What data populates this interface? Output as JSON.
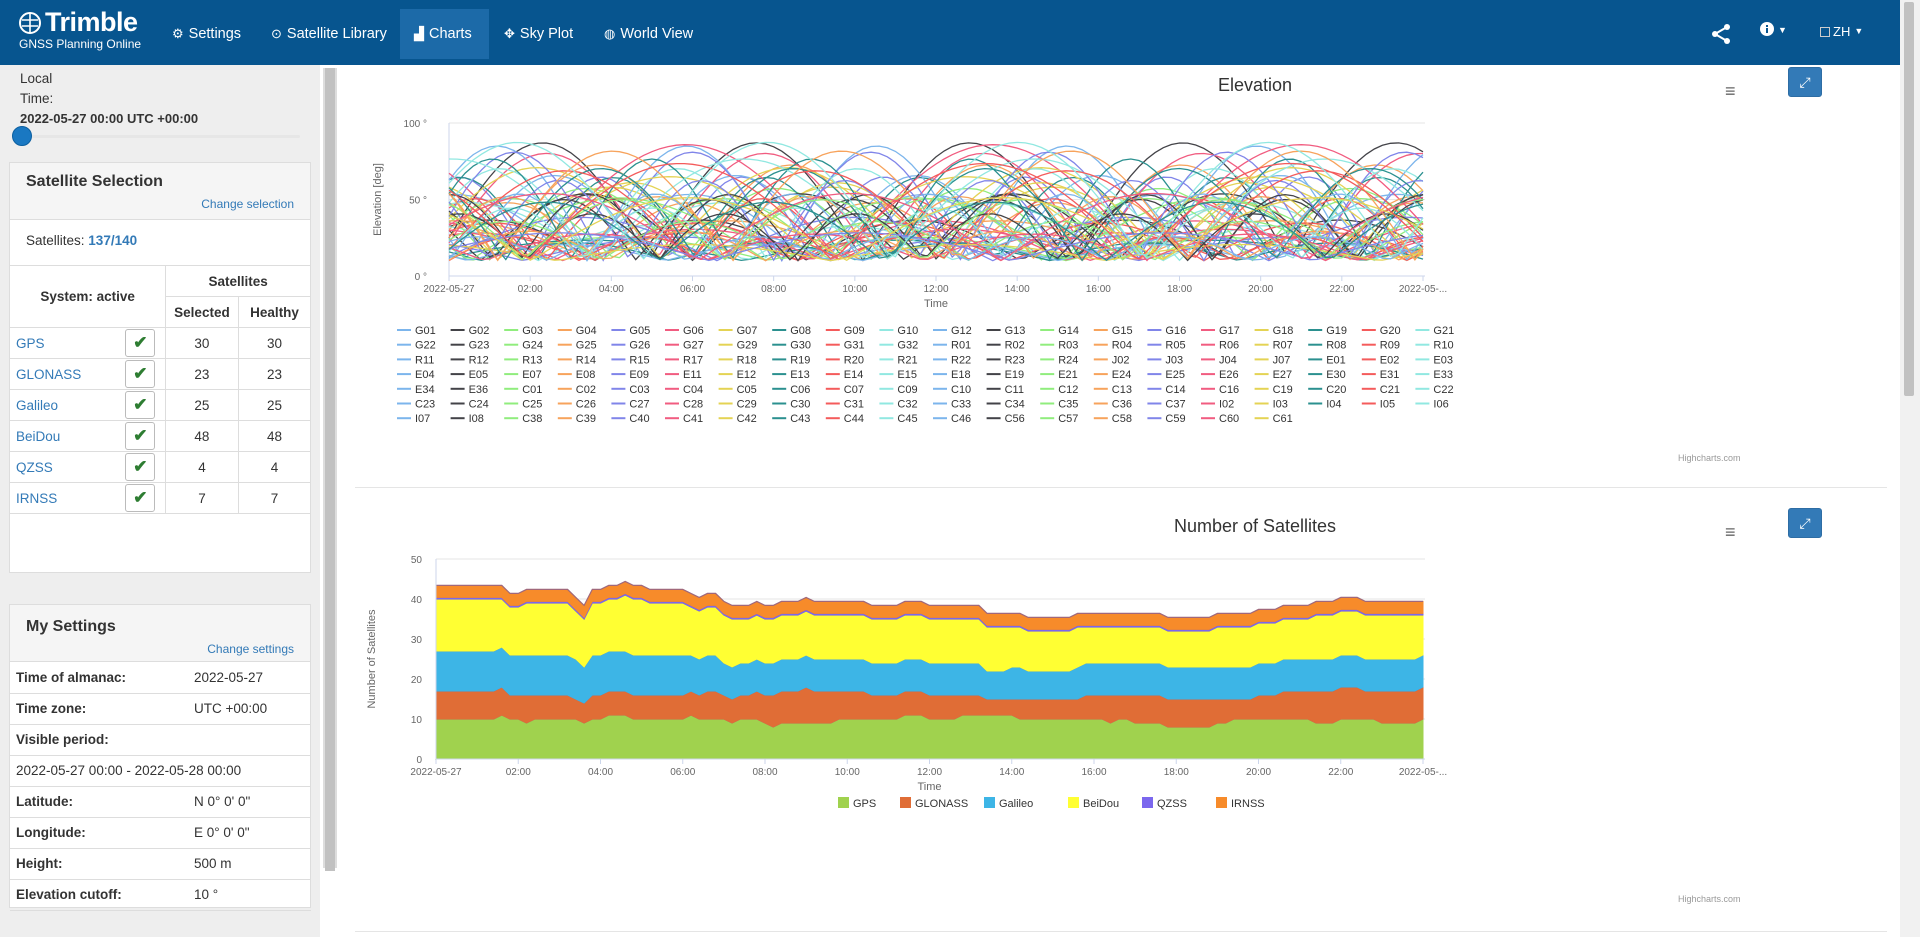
{
  "app": {
    "brand": "Trimble",
    "subtitle": "GNSS Planning Online"
  },
  "nav": [
    {
      "label": "Settings",
      "icon": "gear-icon"
    },
    {
      "label": "Satellite Library",
      "icon": "satellite-icon"
    },
    {
      "label": "Charts",
      "icon": "bar-chart-icon",
      "active": true
    },
    {
      "label": "Sky Plot",
      "icon": "crosshair-icon"
    },
    {
      "label": "World View",
      "icon": "globe-icon"
    }
  ],
  "header": {
    "lang": "ZH"
  },
  "time": {
    "label": "Local Time:",
    "value": "2022-05-27 00:00 UTC +00:00",
    "slider_fraction": 0
  },
  "satellite_selection": {
    "title": "Satellite Selection",
    "change_link": "Change selection",
    "count_label": "Satellites:",
    "count_selected": "137",
    "count_total": "140",
    "col_system": "System: active",
    "col_satellites": "Satellites",
    "col_selected": "Selected",
    "col_healthy": "Healthy",
    "systems": [
      {
        "name": "GPS",
        "selected": "30",
        "healthy": "30"
      },
      {
        "name": "GLONASS",
        "selected": "23",
        "healthy": "23"
      },
      {
        "name": "Galileo",
        "selected": "25",
        "healthy": "25"
      },
      {
        "name": "BeiDou",
        "selected": "48",
        "healthy": "48"
      },
      {
        "name": "QZSS",
        "selected": "4",
        "healthy": "4"
      },
      {
        "name": "IRNSS",
        "selected": "7",
        "healthy": "7"
      }
    ]
  },
  "my_settings": {
    "title": "My Settings",
    "change_link": "Change settings",
    "almanac_label": "Time of almanac:",
    "almanac": "2022-05-27",
    "tz_label": "Time zone:",
    "tz": "UTC +00:00",
    "period_label": "Visible period:",
    "period": "2022-05-27 00:00 - 2022-05-28 00:00",
    "lat_label": "Latitude:",
    "lat": "N 0° 0' 0\"",
    "lon_label": "Longitude:",
    "lon": "E 0° 0' 0\"",
    "height_label": "Height:",
    "height": "500 m",
    "cutoff_label": "Elevation cutoff:",
    "cutoff": "10 °"
  },
  "chart_data": [
    {
      "type": "line",
      "title": "Elevation",
      "xlabel": "Time",
      "ylabel": "Elevation [deg]",
      "ylim": [
        0,
        100
      ],
      "yticks": [
        "0 °",
        "50 °",
        "100 °"
      ],
      "xticks": [
        "2022-05-27",
        "02:00",
        "04:00",
        "06:00",
        "08:00",
        "10:00",
        "12:00",
        "14:00",
        "16:00",
        "18:00",
        "20:00",
        "22:00",
        "2022-05-..."
      ],
      "legend": [
        "G01",
        "G02",
        "G03",
        "G04",
        "G05",
        "G06",
        "G07",
        "G08",
        "G09",
        "G10",
        "G12",
        "G13",
        "G14",
        "G15",
        "G16",
        "G17",
        "G18",
        "G19",
        "G20",
        "G21",
        "G22",
        "G23",
        "G24",
        "G25",
        "G26",
        "G27",
        "G29",
        "G30",
        "G31",
        "G32",
        "R01",
        "R02",
        "R03",
        "R04",
        "R05",
        "R06",
        "R07",
        "R08",
        "R09",
        "R10",
        "R11",
        "R12",
        "R13",
        "R14",
        "R15",
        "R17",
        "R18",
        "R19",
        "R20",
        "R21",
        "R22",
        "R23",
        "R24",
        "J02",
        "J03",
        "J04",
        "J07",
        "E01",
        "E02",
        "E03",
        "E04",
        "E05",
        "E07",
        "E08",
        "E09",
        "E11",
        "E12",
        "E13",
        "E14",
        "E15",
        "E18",
        "E19",
        "E21",
        "E24",
        "E25",
        "E26",
        "E27",
        "E30",
        "E31",
        "E33",
        "E34",
        "E36",
        "C01",
        "C02",
        "C03",
        "C04",
        "C05",
        "C06",
        "C07",
        "C09",
        "C10",
        "C11",
        "C12",
        "C13",
        "C14",
        "C16",
        "C19",
        "C20",
        "C21",
        "C22",
        "C23",
        "C24",
        "C25",
        "C26",
        "C27",
        "C28",
        "C29",
        "C30",
        "C31",
        "C32",
        "C33",
        "C34",
        "C35",
        "C36",
        "C37",
        "I02",
        "I03",
        "I04",
        "I05",
        "I06",
        "I07",
        "I08",
        "C38",
        "C39",
        "C40",
        "C41",
        "C42",
        "C43",
        "C44",
        "C45",
        "C46",
        "C56",
        "C57",
        "C58",
        "C59",
        "C60",
        "C61"
      ],
      "palette": [
        "#7cb5ec",
        "#434348",
        "#90ed7d",
        "#f7a35c",
        "#8085e9",
        "#f15c80",
        "#e4d354",
        "#2b908f",
        "#f45b5b",
        "#91e8e1"
      ],
      "credit": "Highcharts.com"
    },
    {
      "type": "area",
      "stacked": true,
      "title": "Number of Satellites",
      "xlabel": "Time",
      "ylabel": "Number of Satellites",
      "ylim": [
        0,
        50
      ],
      "yticks": [
        "0",
        "10",
        "20",
        "30",
        "40",
        "50"
      ],
      "xticks": [
        "2022-05-27",
        "02:00",
        "04:00",
        "06:00",
        "08:00",
        "10:00",
        "12:00",
        "14:00",
        "16:00",
        "18:00",
        "20:00",
        "22:00",
        "2022-05-..."
      ],
      "series": [
        {
          "name": "GPS",
          "color": "#a0d24e",
          "values": [
            10,
            10,
            10,
            10,
            10,
            10,
            10,
            10,
            11,
            10,
            10,
            9,
            10,
            10,
            10,
            10,
            10,
            10,
            9,
            10,
            10,
            11,
            11,
            11,
            10,
            10,
            10,
            10,
            10,
            10,
            10,
            11,
            10,
            10,
            10,
            10,
            9,
            10,
            10,
            10,
            9,
            8,
            9,
            9,
            9,
            9,
            9,
            9,
            9,
            10,
            10,
            10,
            10,
            10,
            10,
            10,
            10,
            11,
            11,
            11,
            10,
            10,
            10,
            10,
            11,
            11,
            11,
            11,
            11,
            11,
            11,
            10,
            10,
            10,
            10,
            10,
            10,
            10,
            10,
            10,
            10,
            10,
            9,
            10,
            10,
            9,
            9,
            9,
            9,
            8,
            8,
            8,
            8,
            8,
            8,
            9,
            9,
            10,
            10,
            10,
            10,
            10,
            10,
            10,
            10,
            10,
            10,
            9,
            9,
            9,
            10,
            10,
            10,
            10,
            10,
            9,
            9,
            9,
            9,
            9,
            10
          ]
        },
        {
          "name": "GLONASS",
          "color": "#e06d36",
          "values": [
            7,
            7,
            7,
            7,
            7,
            7,
            7,
            7,
            7,
            6,
            6,
            7,
            6,
            6,
            6,
            6,
            6,
            5,
            5,
            6,
            6,
            6,
            6,
            6,
            6,
            6,
            6,
            6,
            6,
            6,
            6,
            6,
            6,
            7,
            7,
            6,
            6,
            6,
            6,
            7,
            7,
            8,
            8,
            8,
            8,
            9,
            8,
            8,
            8,
            7,
            7,
            7,
            7,
            6,
            6,
            6,
            6,
            6,
            6,
            6,
            6,
            6,
            6,
            6,
            5,
            5,
            5,
            4,
            4,
            4,
            4,
            5,
            5,
            5,
            5,
            5,
            5,
            5,
            5,
            6,
            6,
            6,
            7,
            6,
            6,
            7,
            7,
            7,
            7,
            7,
            7,
            7,
            7,
            7,
            7,
            6,
            6,
            5,
            5,
            5,
            6,
            6,
            6,
            7,
            7,
            7,
            7,
            8,
            8,
            8,
            8,
            8,
            8,
            7,
            7,
            8,
            8,
            8,
            8,
            8,
            8
          ]
        },
        {
          "name": "Galileo",
          "color": "#3db5e6",
          "values": [
            10,
            10,
            10,
            10,
            10,
            10,
            10,
            10,
            10,
            10,
            10,
            10,
            10,
            10,
            10,
            10,
            10,
            10,
            9,
            10,
            10,
            10,
            10,
            10,
            10,
            10,
            10,
            10,
            10,
            10,
            10,
            9,
            9,
            9,
            9,
            8,
            8,
            8,
            8,
            8,
            8,
            8,
            8,
            8,
            8,
            8,
            8,
            8,
            8,
            8,
            8,
            8,
            8,
            8,
            8,
            8,
            8,
            8,
            8,
            8,
            8,
            8,
            8,
            8,
            8,
            8,
            8,
            7,
            7,
            7,
            8,
            8,
            7,
            7,
            7,
            7,
            7,
            7,
            8,
            8,
            8,
            8,
            8,
            8,
            8,
            8,
            8,
            8,
            8,
            8,
            8,
            8,
            8,
            8,
            8,
            8,
            8,
            8,
            8,
            8,
            8,
            8,
            8,
            8,
            8,
            8,
            8,
            8,
            8,
            8,
            8,
            8,
            8,
            8,
            8,
            8,
            8,
            8,
            8,
            8,
            8
          ]
        },
        {
          "name": "BeiDou",
          "color": "#ffff33",
          "values": [
            13,
            13,
            13,
            13,
            13,
            13,
            13,
            13,
            12,
            12,
            12,
            13,
            13,
            13,
            13,
            13,
            13,
            12,
            12,
            13,
            13,
            13,
            13,
            14,
            14,
            14,
            13,
            13,
            13,
            13,
            13,
            12,
            12,
            12,
            12,
            12,
            12,
            11,
            11,
            11,
            11,
            11,
            11,
            11,
            11,
            11,
            11,
            11,
            11,
            11,
            11,
            11,
            11,
            11,
            11,
            11,
            11,
            11,
            11,
            11,
            11,
            11,
            11,
            11,
            11,
            11,
            11,
            11,
            11,
            11,
            10,
            10,
            10,
            10,
            10,
            10,
            10,
            10,
            10,
            9,
            9,
            9,
            9,
            9,
            9,
            9,
            9,
            9,
            9,
            9,
            9,
            9,
            9,
            9,
            9,
            10,
            10,
            10,
            10,
            10,
            10,
            10,
            10,
            10,
            10,
            10,
            10,
            11,
            11,
            11,
            11,
            11,
            11,
            11,
            11,
            11,
            11,
            11,
            11,
            11,
            10
          ]
        },
        {
          "name": "QZSS",
          "color": "#7b67ee",
          "values": [
            0.4,
            0.4,
            0.4,
            0.4,
            0.4,
            0.4,
            0.4,
            0.4,
            0.4,
            0.4,
            0.4,
            0.4,
            0.4,
            0.4,
            0.4,
            0.4,
            0.4,
            0.4,
            0.4,
            0.4,
            0.4,
            0.4,
            0.4,
            0.4,
            0.4,
            0.4,
            0.4,
            0.4,
            0.4,
            0.4,
            0.4,
            0.4,
            0.4,
            0.4,
            0.4,
            0.4,
            0.4,
            0.4,
            0.4,
            0.4,
            0.4,
            0.4,
            0.4,
            0.4,
            0.4,
            0.4,
            0.4,
            0.4,
            0.4,
            0.4,
            0.4,
            0.4,
            0.4,
            0.4,
            0.4,
            0.4,
            0.4,
            0.4,
            0.4,
            0.4,
            0.4,
            0.4,
            0.4,
            0.4,
            0.4,
            0.4,
            0.4,
            0.4,
            0.4,
            0.4,
            0.4,
            0.4,
            0.4,
            0.4,
            0.4,
            0.4,
            0.4,
            0.4,
            0.4,
            0.4,
            0.4,
            0.4,
            0.4,
            0.4,
            0.4,
            0.4,
            0.4,
            0.4,
            0.4,
            0.4,
            0.4,
            0.4,
            0.4,
            0.4,
            0.4,
            0.4,
            0.4,
            0.4,
            0.4,
            0.4,
            0.4,
            0.4,
            0.4,
            0.4,
            0.4,
            0.4,
            0.4,
            0.4,
            0.4,
            0.4,
            0.4,
            0.4,
            0.4,
            0.4,
            0.4,
            0.4,
            0.4,
            0.4,
            0.4,
            0.4,
            0.4
          ]
        },
        {
          "name": "IRNSS",
          "color": "#f78b2a",
          "values": [
            3,
            3,
            3,
            3,
            3,
            3,
            3,
            3,
            3,
            3,
            3,
            3,
            3,
            3,
            3,
            3,
            3,
            3,
            3,
            3,
            3,
            3,
            3,
            3,
            3,
            3,
            3,
            3,
            3,
            3,
            3,
            3,
            3,
            3,
            3,
            3,
            3,
            3,
            3,
            3,
            3,
            3,
            3,
            3,
            3,
            3,
            3,
            3,
            3,
            3,
            3,
            3,
            3,
            3,
            3,
            3,
            3,
            3,
            3,
            3,
            3,
            3,
            3,
            3,
            3,
            3,
            3,
            3,
            3,
            3,
            3,
            3,
            3,
            3,
            3,
            3,
            3,
            3,
            3,
            3,
            3,
            3,
            3,
            3,
            3,
            3,
            3,
            3,
            3,
            3,
            3,
            3,
            3,
            3,
            3,
            3,
            3,
            3,
            3,
            3,
            3,
            3,
            3,
            3,
            3,
            3,
            3,
            3,
            3,
            3,
            3,
            3,
            3,
            3,
            3,
            3,
            3,
            3,
            3,
            3,
            3
          ]
        }
      ],
      "credit": "Highcharts.com"
    }
  ]
}
